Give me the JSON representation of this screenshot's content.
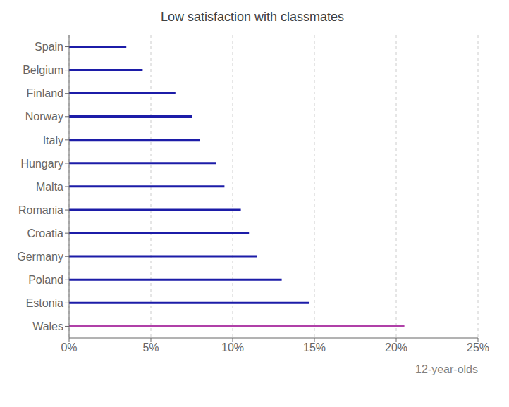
{
  "chart_data": {
    "type": "bar",
    "orientation": "horizontal",
    "title": "Low satisfaction with classmates",
    "xlabel": "12-year-olds",
    "categories": [
      "Wales",
      "Estonia",
      "Poland",
      "Germany",
      "Croatia",
      "Romania",
      "Malta",
      "Hungary",
      "Italy",
      "Norway",
      "Finland",
      "Belgium",
      "Spain"
    ],
    "values": [
      20.5,
      14.7,
      13.0,
      11.5,
      11.0,
      10.5,
      9.5,
      9.0,
      8.0,
      7.5,
      6.5,
      4.5,
      3.5
    ],
    "colors": [
      "#b040a8",
      "#1c1ca8",
      "#1c1ca8",
      "#1c1ca8",
      "#1c1ca8",
      "#1c1ca8",
      "#1c1ca8",
      "#1c1ca8",
      "#1c1ca8",
      "#1c1ca8",
      "#1c1ca8",
      "#1c1ca8",
      "#1c1ca8"
    ],
    "xlim": [
      0,
      25
    ],
    "xticks": [
      {
        "value": 0,
        "label": "0%"
      },
      {
        "value": 5,
        "label": "5%"
      },
      {
        "value": 10,
        "label": "10%"
      },
      {
        "value": 15,
        "label": "15%"
      },
      {
        "value": 20,
        "label": "20%"
      },
      {
        "value": 25,
        "label": "25%"
      }
    ],
    "grid": true
  }
}
